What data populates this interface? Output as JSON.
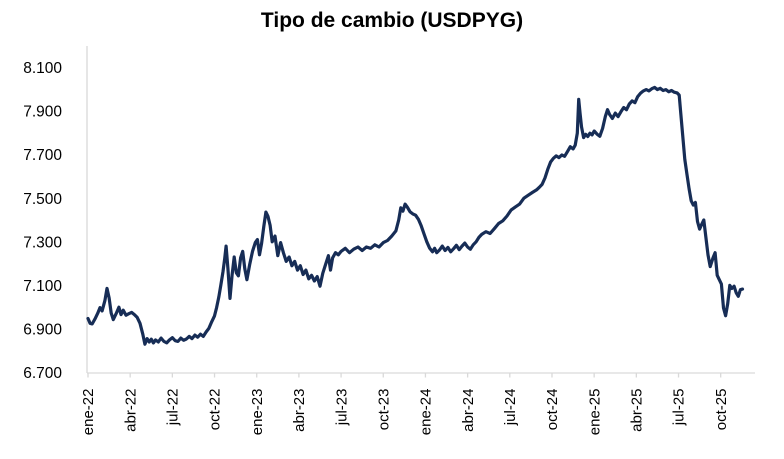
{
  "chart_data": {
    "type": "line",
    "title": "Tipo de cambio (USDPYG)",
    "background": "#FFFFFF",
    "text_color": "#000000",
    "axis_color": "#D9D9D9",
    "gridlines": "none",
    "legend_position": "none",
    "y_axis": {
      "min": 6700,
      "max": 8200,
      "tick_step": 200
    },
    "y_ticks": [
      6700,
      6900,
      7100,
      7300,
      7500,
      7700,
      7900,
      8100
    ],
    "y_tick_labels": [
      "6.700",
      "6.900",
      "7.100",
      "7.300",
      "7.500",
      "7.700",
      "7.900",
      "8.100"
    ],
    "x_tick_labels": [
      "ene-22",
      "abr-22",
      "jul-22",
      "oct-22",
      "ene-23",
      "abr-23",
      "jul-23",
      "oct-23",
      "ene-24",
      "abr-24",
      "jul-24",
      "oct-24",
      "ene-25",
      "abr-25",
      "jul-25",
      "oct-25"
    ],
    "x_tick_months": [
      0,
      3,
      6,
      9,
      12,
      15,
      18,
      21,
      24,
      27,
      30,
      33,
      36,
      39,
      42,
      45
    ],
    "x_axis": {
      "min_month": -0.1,
      "max_month": 47.4,
      "label_rotation_deg": -90
    },
    "series": [
      {
        "name": "USDPYG",
        "color": "#172D56",
        "stroke_width": 3.2,
        "points_format": "[months_since_ene_2022, guaranies_per_usd]",
        "points": [
          [
            0,
            6950
          ],
          [
            0.15,
            6928
          ],
          [
            0.3,
            6925
          ],
          [
            0.5,
            6948
          ],
          [
            0.7,
            6975
          ],
          [
            0.85,
            7000
          ],
          [
            1,
            6985
          ],
          [
            1.2,
            7032
          ],
          [
            1.35,
            7088
          ],
          [
            1.5,
            7045
          ],
          [
            1.65,
            6975
          ],
          [
            1.8,
            6945
          ],
          [
            2,
            6972
          ],
          [
            2.2,
            7002
          ],
          [
            2.35,
            6968
          ],
          [
            2.5,
            6988
          ],
          [
            2.7,
            6965
          ],
          [
            2.9,
            6972
          ],
          [
            3.1,
            6978
          ],
          [
            3.3,
            6968
          ],
          [
            3.5,
            6955
          ],
          [
            3.7,
            6928
          ],
          [
            3.9,
            6878
          ],
          [
            4.05,
            6832
          ],
          [
            4.2,
            6858
          ],
          [
            4.35,
            6842
          ],
          [
            4.5,
            6855
          ],
          [
            4.65,
            6838
          ],
          [
            4.8,
            6852
          ],
          [
            5,
            6842
          ],
          [
            5.2,
            6860
          ],
          [
            5.4,
            6845
          ],
          [
            5.6,
            6838
          ],
          [
            5.8,
            6852
          ],
          [
            6,
            6862
          ],
          [
            6.2,
            6848
          ],
          [
            6.4,
            6845
          ],
          [
            6.6,
            6860
          ],
          [
            6.8,
            6850
          ],
          [
            7,
            6856
          ],
          [
            7.2,
            6868
          ],
          [
            7.4,
            6858
          ],
          [
            7.6,
            6874
          ],
          [
            7.8,
            6864
          ],
          [
            8,
            6878
          ],
          [
            8.2,
            6868
          ],
          [
            8.4,
            6888
          ],
          [
            8.6,
            6905
          ],
          [
            8.8,
            6935
          ],
          [
            9,
            6962
          ],
          [
            9.15,
            7000
          ],
          [
            9.3,
            7048
          ],
          [
            9.45,
            7105
          ],
          [
            9.6,
            7165
          ],
          [
            9.72,
            7225
          ],
          [
            9.82,
            7282
          ],
          [
            9.95,
            7180
          ],
          [
            10.1,
            7042
          ],
          [
            10.25,
            7150
          ],
          [
            10.4,
            7232
          ],
          [
            10.55,
            7160
          ],
          [
            10.7,
            7146
          ],
          [
            10.85,
            7228
          ],
          [
            11,
            7258
          ],
          [
            11.15,
            7178
          ],
          [
            11.3,
            7128
          ],
          [
            11.5,
            7198
          ],
          [
            11.7,
            7258
          ],
          [
            11.9,
            7298
          ],
          [
            12.05,
            7312
          ],
          [
            12.2,
            7242
          ],
          [
            12.35,
            7295
          ],
          [
            12.5,
            7372
          ],
          [
            12.65,
            7438
          ],
          [
            12.8,
            7418
          ],
          [
            12.95,
            7378
          ],
          [
            13.1,
            7302
          ],
          [
            13.3,
            7328
          ],
          [
            13.5,
            7238
          ],
          [
            13.7,
            7298
          ],
          [
            13.9,
            7252
          ],
          [
            14.1,
            7212
          ],
          [
            14.3,
            7232
          ],
          [
            14.5,
            7192
          ],
          [
            14.7,
            7212
          ],
          [
            14.9,
            7172
          ],
          [
            15.1,
            7192
          ],
          [
            15.3,
            7152
          ],
          [
            15.5,
            7172
          ],
          [
            15.7,
            7132
          ],
          [
            15.9,
            7148
          ],
          [
            16.1,
            7122
          ],
          [
            16.3,
            7142
          ],
          [
            16.5,
            7098
          ],
          [
            16.7,
            7158
          ],
          [
            16.9,
            7198
          ],
          [
            17.1,
            7238
          ],
          [
            17.25,
            7172
          ],
          [
            17.4,
            7228
          ],
          [
            17.6,
            7252
          ],
          [
            17.8,
            7242
          ],
          [
            18,
            7258
          ],
          [
            18.3,
            7272
          ],
          [
            18.6,
            7252
          ],
          [
            18.9,
            7268
          ],
          [
            19.2,
            7278
          ],
          [
            19.5,
            7262
          ],
          [
            19.8,
            7278
          ],
          [
            20.1,
            7272
          ],
          [
            20.4,
            7288
          ],
          [
            20.7,
            7278
          ],
          [
            21,
            7298
          ],
          [
            21.3,
            7308
          ],
          [
            21.6,
            7328
          ],
          [
            21.9,
            7352
          ],
          [
            22.1,
            7402
          ],
          [
            22.25,
            7458
          ],
          [
            22.4,
            7442
          ],
          [
            22.55,
            7475
          ],
          [
            22.7,
            7462
          ],
          [
            22.9,
            7440
          ],
          [
            23.1,
            7430
          ],
          [
            23.3,
            7424
          ],
          [
            23.5,
            7405
          ],
          [
            23.7,
            7375
          ],
          [
            23.9,
            7338
          ],
          [
            24.1,
            7302
          ],
          [
            24.3,
            7272
          ],
          [
            24.5,
            7256
          ],
          [
            24.65,
            7272
          ],
          [
            24.8,
            7252
          ],
          [
            25,
            7264
          ],
          [
            25.2,
            7282
          ],
          [
            25.4,
            7262
          ],
          [
            25.6,
            7276
          ],
          [
            25.8,
            7256
          ],
          [
            26,
            7270
          ],
          [
            26.2,
            7286
          ],
          [
            26.4,
            7266
          ],
          [
            26.6,
            7282
          ],
          [
            26.8,
            7296
          ],
          [
            27,
            7278
          ],
          [
            27.2,
            7268
          ],
          [
            27.4,
            7288
          ],
          [
            27.6,
            7302
          ],
          [
            27.8,
            7322
          ],
          [
            28,
            7336
          ],
          [
            28.3,
            7348
          ],
          [
            28.6,
            7340
          ],
          [
            28.9,
            7362
          ],
          [
            29.2,
            7386
          ],
          [
            29.5,
            7398
          ],
          [
            29.8,
            7420
          ],
          [
            30.1,
            7448
          ],
          [
            30.4,
            7462
          ],
          [
            30.7,
            7475
          ],
          [
            31,
            7502
          ],
          [
            31.3,
            7515
          ],
          [
            31.6,
            7528
          ],
          [
            31.9,
            7540
          ],
          [
            32.1,
            7552
          ],
          [
            32.3,
            7565
          ],
          [
            32.5,
            7595
          ],
          [
            32.7,
            7635
          ],
          [
            32.9,
            7668
          ],
          [
            33.1,
            7685
          ],
          [
            33.3,
            7696
          ],
          [
            33.5,
            7688
          ],
          [
            33.7,
            7700
          ],
          [
            33.9,
            7694
          ],
          [
            34.1,
            7715
          ],
          [
            34.3,
            7738
          ],
          [
            34.5,
            7728
          ],
          [
            34.65,
            7745
          ],
          [
            34.8,
            7800
          ],
          [
            34.9,
            7955
          ],
          [
            35,
            7890
          ],
          [
            35.1,
            7830
          ],
          [
            35.25,
            7780
          ],
          [
            35.4,
            7795
          ],
          [
            35.55,
            7785
          ],
          [
            35.7,
            7800
          ],
          [
            35.85,
            7792
          ],
          [
            36,
            7810
          ],
          [
            36.2,
            7796
          ],
          [
            36.4,
            7786
          ],
          [
            36.6,
            7822
          ],
          [
            36.8,
            7878
          ],
          [
            36.95,
            7908
          ],
          [
            37.1,
            7886
          ],
          [
            37.3,
            7868
          ],
          [
            37.5,
            7892
          ],
          [
            37.7,
            7876
          ],
          [
            37.9,
            7898
          ],
          [
            38.1,
            7918
          ],
          [
            38.3,
            7908
          ],
          [
            38.5,
            7934
          ],
          [
            38.7,
            7948
          ],
          [
            38.9,
            7940
          ],
          [
            39.1,
            7968
          ],
          [
            39.3,
            7984
          ],
          [
            39.5,
            7994
          ],
          [
            39.7,
            8000
          ],
          [
            39.9,
            7994
          ],
          [
            40.1,
            8004
          ],
          [
            40.3,
            8010
          ],
          [
            40.5,
            8000
          ],
          [
            40.7,
            8006
          ],
          [
            40.9,
            7996
          ],
          [
            41.1,
            8000
          ],
          [
            41.3,
            7990
          ],
          [
            41.5,
            7996
          ],
          [
            41.7,
            7988
          ],
          [
            41.9,
            7985
          ],
          [
            42.05,
            7975
          ],
          [
            42.15,
            7900
          ],
          [
            42.3,
            7790
          ],
          [
            42.45,
            7680
          ],
          [
            42.6,
            7610
          ],
          [
            42.75,
            7545
          ],
          [
            42.9,
            7490
          ],
          [
            43.05,
            7470
          ],
          [
            43.2,
            7482
          ],
          [
            43.35,
            7395
          ],
          [
            43.5,
            7360
          ],
          [
            43.65,
            7382
          ],
          [
            43.8,
            7402
          ],
          [
            44.1,
            7242
          ],
          [
            44.25,
            7188
          ],
          [
            44.45,
            7228
          ],
          [
            44.6,
            7252
          ],
          [
            44.75,
            7148
          ],
          [
            44.9,
            7128
          ],
          [
            45.05,
            7108
          ],
          [
            45.2,
            6998
          ],
          [
            45.35,
            6963
          ],
          [
            45.5,
            7018
          ],
          [
            45.65,
            7102
          ],
          [
            45.8,
            7088
          ],
          [
            45.95,
            7098
          ],
          [
            46.1,
            7068
          ],
          [
            46.25,
            7052
          ],
          [
            46.4,
            7082
          ],
          [
            46.55,
            7085
          ]
        ]
      }
    ]
  }
}
